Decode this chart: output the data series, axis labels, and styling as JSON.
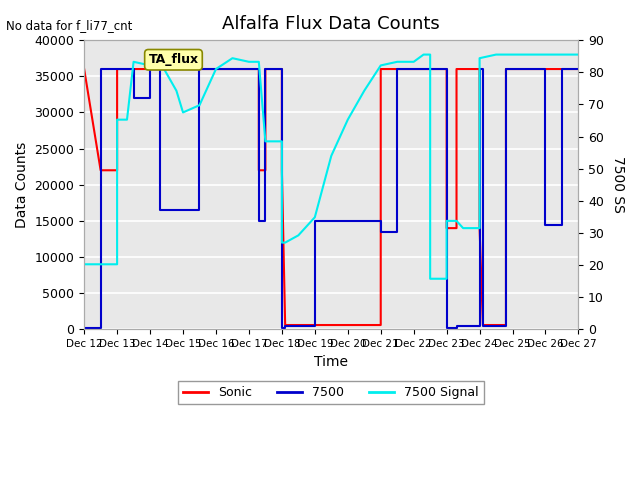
{
  "title": "Alfalfa Flux Data Counts",
  "subtitle": "No data for f_li77_cnt",
  "ylabel_left": "Data Counts",
  "ylabel_right": "7500 SS",
  "xlabel": "Time",
  "annotation": "TA_flux",
  "xlim": [
    12,
    27
  ],
  "ylim_left": [
    0,
    40000
  ],
  "ylim_right": [
    0,
    90
  ],
  "xtick_labels": [
    "Dec 12",
    "Dec 13",
    "Dec 14",
    "Dec 15",
    "Dec 16",
    "Dec 17",
    "Dec 18",
    "Dec 19",
    "Dec 20",
    "Dec 21",
    "Dec 22",
    "Dec 23",
    "Dec 24",
    "Dec 25",
    "Dec 26",
    "Dec 27"
  ],
  "yticks_left": [
    0,
    5000,
    10000,
    15000,
    20000,
    25000,
    30000,
    35000,
    40000
  ],
  "yticks_right": [
    0,
    10,
    20,
    30,
    40,
    50,
    60,
    70,
    80,
    90
  ],
  "bg_color": "#e8e8e8",
  "grid_color": "#ffffff",
  "sonic_color": "#ff0000",
  "x7500_color": "#0000cc",
  "signal_color": "#00eeee",
  "legend_labels": [
    "Sonic",
    "7500",
    "7500 Signal"
  ],
  "sonic_x": [
    12.0,
    12.0,
    12.5,
    13.0,
    13.0,
    13.5,
    13.7,
    13.7,
    14.3,
    17.0,
    17.0,
    17.3,
    17.3,
    17.4,
    17.5,
    17.5,
    18.0,
    18.0,
    18.1,
    21.0,
    21.0,
    22.5,
    22.5,
    23.0,
    23.0,
    23.3,
    23.3,
    24.0,
    24.0,
    24.1,
    24.8,
    24.8,
    25.5,
    25.5,
    26.0,
    26.0,
    26.5,
    27.0
  ],
  "sonic_y": [
    36000,
    36000,
    22000,
    22000,
    36000,
    36000,
    36000,
    36000,
    36000,
    36000,
    36000,
    36000,
    22000,
    22000,
    22000,
    36000,
    36000,
    22000,
    600,
    600,
    36000,
    36000,
    36000,
    36000,
    14000,
    14000,
    36000,
    36000,
    14000,
    600,
    600,
    36000,
    36000,
    36000,
    36000,
    36000,
    36000,
    36000
  ],
  "x7500_x": [
    12.0,
    12.5,
    12.5,
    13.0,
    13.0,
    13.5,
    13.5,
    14.0,
    14.0,
    14.3,
    14.3,
    15.0,
    15.0,
    15.5,
    15.5,
    16.0,
    16.0,
    16.5,
    16.5,
    17.0,
    17.0,
    17.3,
    17.3,
    17.5,
    17.5,
    18.0,
    18.0,
    18.1,
    18.1,
    19.0,
    19.0,
    21.0,
    21.0,
    21.5,
    21.5,
    22.0,
    22.0,
    22.5,
    22.5,
    23.0,
    23.0,
    23.3,
    23.3,
    24.0,
    24.0,
    24.1,
    24.1,
    24.8,
    24.8,
    25.5,
    25.5,
    26.0,
    26.0,
    26.5,
    26.5,
    27.0
  ],
  "x7500_y": [
    200,
    200,
    36000,
    36000,
    36000,
    36000,
    32000,
    32000,
    36000,
    36000,
    16500,
    16500,
    16500,
    16500,
    36000,
    36000,
    36000,
    36000,
    36000,
    36000,
    36000,
    36000,
    15000,
    15000,
    36000,
    36000,
    200,
    200,
    500,
    500,
    15000,
    15000,
    13500,
    13500,
    36000,
    36000,
    36000,
    36000,
    36000,
    36000,
    200,
    200,
    500,
    500,
    36000,
    36000,
    500,
    500,
    36000,
    36000,
    36000,
    36000,
    14500,
    14500,
    36000,
    36000
  ],
  "signal_x": [
    12.0,
    13.0,
    13.0,
    13.3,
    13.5,
    14.0,
    14.3,
    14.8,
    15.0,
    15.5,
    16.0,
    16.5,
    17.0,
    17.3,
    17.5,
    18.0,
    18.0,
    18.1,
    18.5,
    19.0,
    19.5,
    20.0,
    20.5,
    21.0,
    21.5,
    22.0,
    22.3,
    22.5,
    22.5,
    23.0,
    23.0,
    23.3,
    23.5,
    24.0,
    24.0,
    24.5,
    25.0,
    25.5,
    26.0,
    26.5,
    27.0
  ],
  "signal_y": [
    9000,
    9000,
    29000,
    29000,
    37000,
    36500,
    37000,
    33000,
    30000,
    31000,
    36000,
    37500,
    37000,
    37000,
    26000,
    26000,
    12000,
    12000,
    13000,
    15500,
    24000,
    29000,
    33000,
    36500,
    37000,
    37000,
    38000,
    38000,
    7000,
    7000,
    15000,
    15000,
    14000,
    14000,
    37500,
    38000,
    38000,
    38000,
    38000,
    38000,
    38000
  ]
}
